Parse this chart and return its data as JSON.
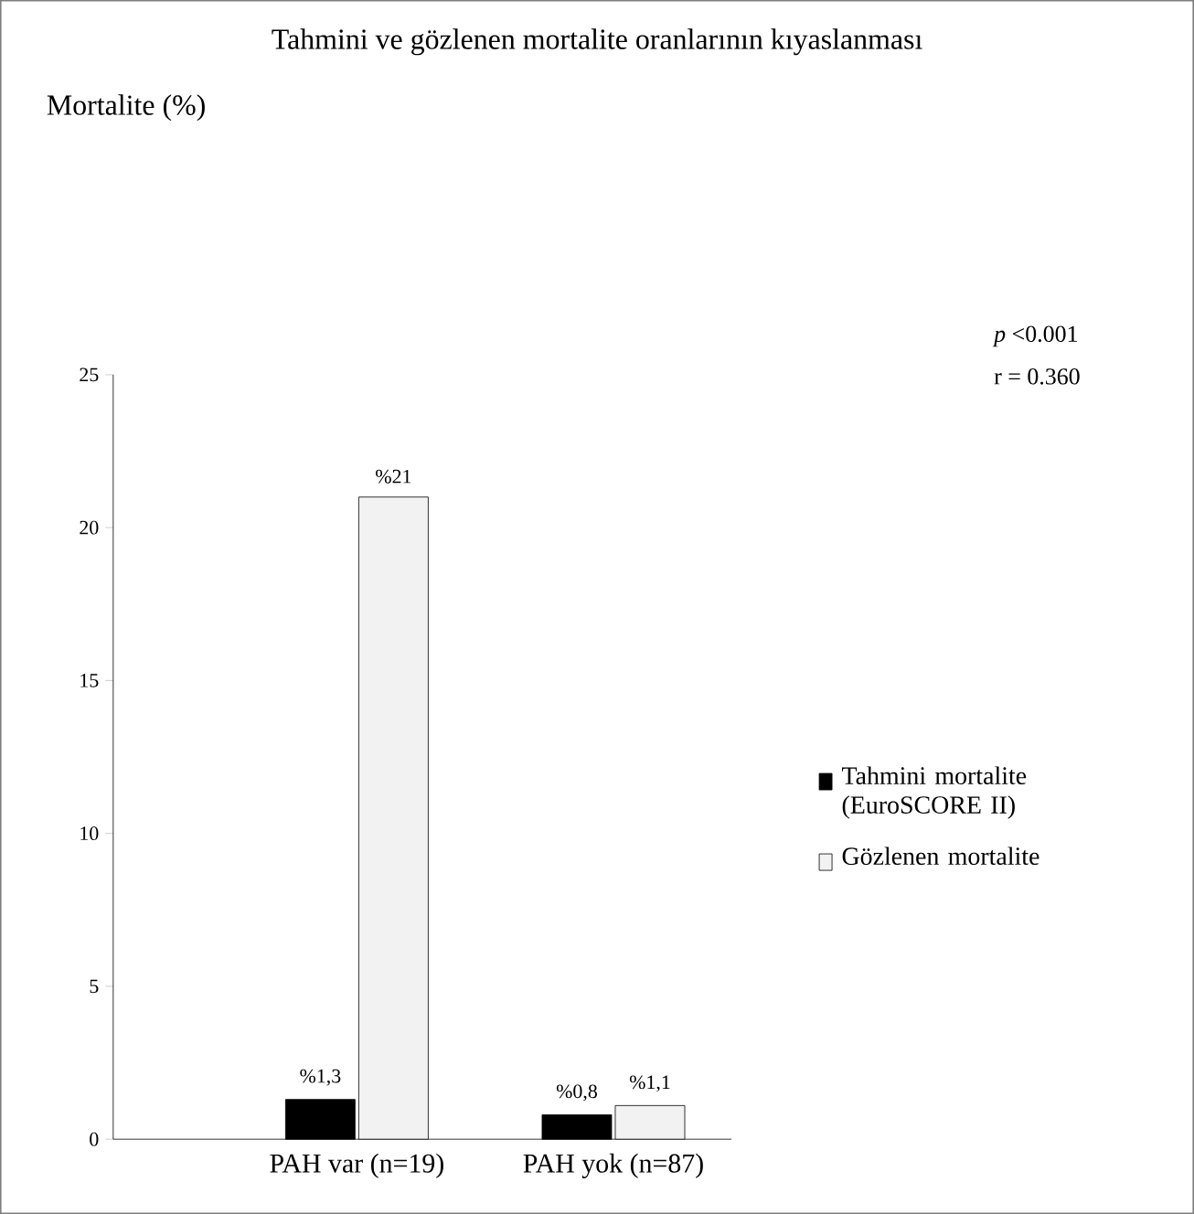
{
  "chart_data": {
    "type": "bar",
    "title": "Tahmini ve gözlenen mortalite oranlarının kıyaslanması",
    "categories": [
      "PAH var (n=19)",
      "PAH yok (n=87)"
    ],
    "series": [
      {
        "name": "Tahmini mortalite (EuroSCORE II)",
        "color": "#000000",
        "values": [
          1.3,
          0.8
        ],
        "value_labels": [
          "%1,3",
          "%0,8"
        ]
      },
      {
        "name": "Gözlenen mortalite",
        "color": "#f2f2f2",
        "values": [
          21,
          1.1
        ],
        "value_labels": [
          "%21",
          "%1,1"
        ]
      }
    ],
    "ylim": [
      0,
      25
    ],
    "yticks": [
      0,
      5,
      10,
      15,
      20,
      25
    ],
    "annotations": [
      "Mortalite (%)",
      "*p* <0.001",
      "r = 0.360"
    ],
    "legend": "right",
    "grid": false
  }
}
